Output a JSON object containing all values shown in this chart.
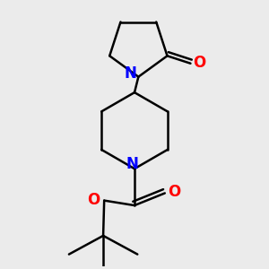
{
  "bg_color": "#ebebeb",
  "bond_color": "#000000",
  "N_color": "#0000ff",
  "O_color": "#ff0000",
  "line_width": 1.8,
  "figsize": [
    3.0,
    3.0
  ],
  "dpi": 100,
  "xlim": [
    -2.2,
    2.2
  ],
  "ylim": [
    -3.2,
    2.2
  ],
  "label_fontsize": 12
}
